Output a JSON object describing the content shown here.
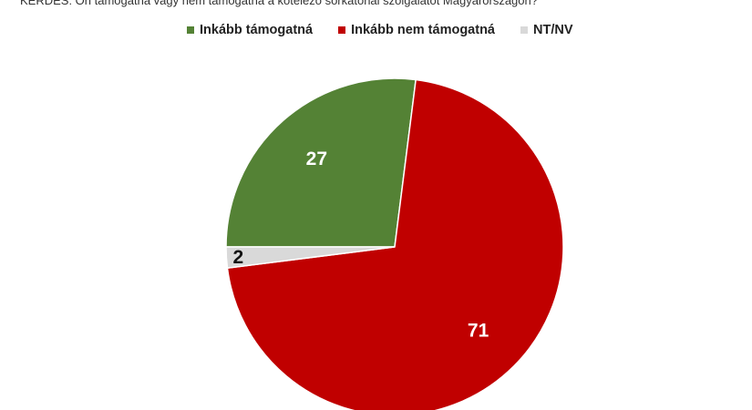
{
  "question": "KÉRDÉS: Ön támogatná vagy nem támogatná a kötelező sorkatonai szolgálatot Magyarországon?",
  "chart_data": {
    "type": "pie",
    "title": "",
    "start_angle_deg": 270,
    "legend_position": "top",
    "slices": [
      {
        "label": "Inkább támogatná",
        "value": 27,
        "color": "#548235",
        "label_color": "#ffffff"
      },
      {
        "label": "Inkább nem támogatná",
        "value": 71,
        "color": "#C00000",
        "label_color": "#ffffff"
      },
      {
        "label": "NT/NV",
        "value": 2,
        "color": "#D9D9D9",
        "label_color": "#111111"
      }
    ]
  }
}
